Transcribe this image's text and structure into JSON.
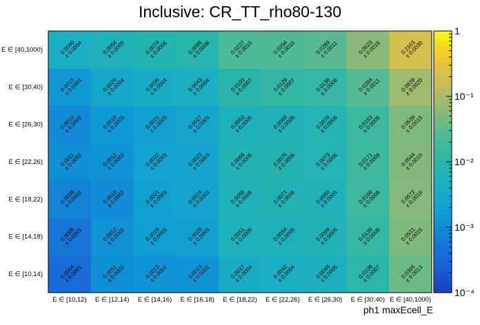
{
  "chart_data": {
    "type": "heatmap",
    "title": "Inclusive: CR_TT_rho80-130",
    "xlabel": "ph1 maxEcell_E",
    "ylabel": "",
    "x_categories": [
      "E ∈ [10,12)",
      "E ∈ [12,14)",
      "E ∈ [14,16)",
      "E ∈ [16,18)",
      "E ∈ [18,22)",
      "E ∈ [22,26)",
      "E ∈ [26,30)",
      "E ∈ [30,40)",
      "E ∈ [40,1000)"
    ],
    "y_categories": [
      "E ∈ [10,14)",
      "E ∈ [14,18)",
      "E ∈ [18,22)",
      "E ∈ [22,26)",
      "E ∈ [26,30)",
      "E ∈ [30,40)",
      "E ∈ [40,1000)"
    ],
    "values": [
      [
        0.0004,
        0.0011,
        0.0013,
        0.0013,
        0.0037,
        0.0042,
        0.0048,
        0.0108,
        0.0395
      ],
      [
        0.0005,
        0.0012,
        0.0019,
        0.002,
        0.0051,
        0.0054,
        0.0069,
        0.0139,
        0.0531
      ],
      [
        0.0008,
        0.001,
        0.0021,
        0.0024,
        0.0058,
        0.0071,
        0.006,
        0.0166,
        0.0572
      ],
      [
        0.0011,
        0.0012,
        0.0022,
        0.0023,
        0.0068,
        0.0075,
        0.0073,
        0.0171,
        0.0544
      ],
      [
        0.001,
        0.0015,
        0.0021,
        0.0027,
        0.0052,
        0.006,
        0.0076,
        0.0163,
        0.0539
      ],
      [
        0.0015,
        0.0029,
        0.0036,
        0.0043,
        0.0103,
        0.0129,
        0.0138,
        0.0284,
        0.0839
      ],
      [
        0.004,
        0.0054,
        0.0074,
        0.0096,
        0.0227,
        0.0254,
        0.0289,
        0.0623,
        0.2103
      ]
    ],
    "errors": [
      [
        0.0001,
        0.0002,
        0.0002,
        0.0002,
        0.0004,
        0.0004,
        0.0005,
        0.0007,
        0.0013
      ],
      [
        0.0001,
        0.0002,
        0.0003,
        0.0003,
        0.0005,
        0.0005,
        0.0005,
        0.0008,
        0.0015
      ],
      [
        0.0002,
        0.0002,
        0.0003,
        0.0003,
        0.0005,
        0.0006,
        0.0005,
        0.0008,
        0.0016
      ],
      [
        0.0002,
        0.0002,
        0.0003,
        0.0003,
        0.0005,
        0.0006,
        0.0006,
        0.0009,
        0.0015
      ],
      [
        0.0002,
        0.0003,
        0.0003,
        0.0003,
        0.0005,
        0.0005,
        0.0006,
        0.0008,
        0.0015
      ],
      [
        0.0003,
        0.0004,
        0.0004,
        0.0004,
        0.0007,
        0.0007,
        0.0008,
        0.0011,
        0.002
      ],
      [
        0.0004,
        0.0005,
        0.0006,
        0.0006,
        0.001,
        0.001,
        0.0011,
        0.0016,
        0.003
      ]
    ],
    "colorbar": {
      "scale": "log",
      "range": [
        0.0001,
        1
      ],
      "ticks": [
        "10⁻⁴",
        "10⁻³",
        "10⁻²",
        "10⁻¹",
        "1"
      ]
    },
    "grid": false
  }
}
